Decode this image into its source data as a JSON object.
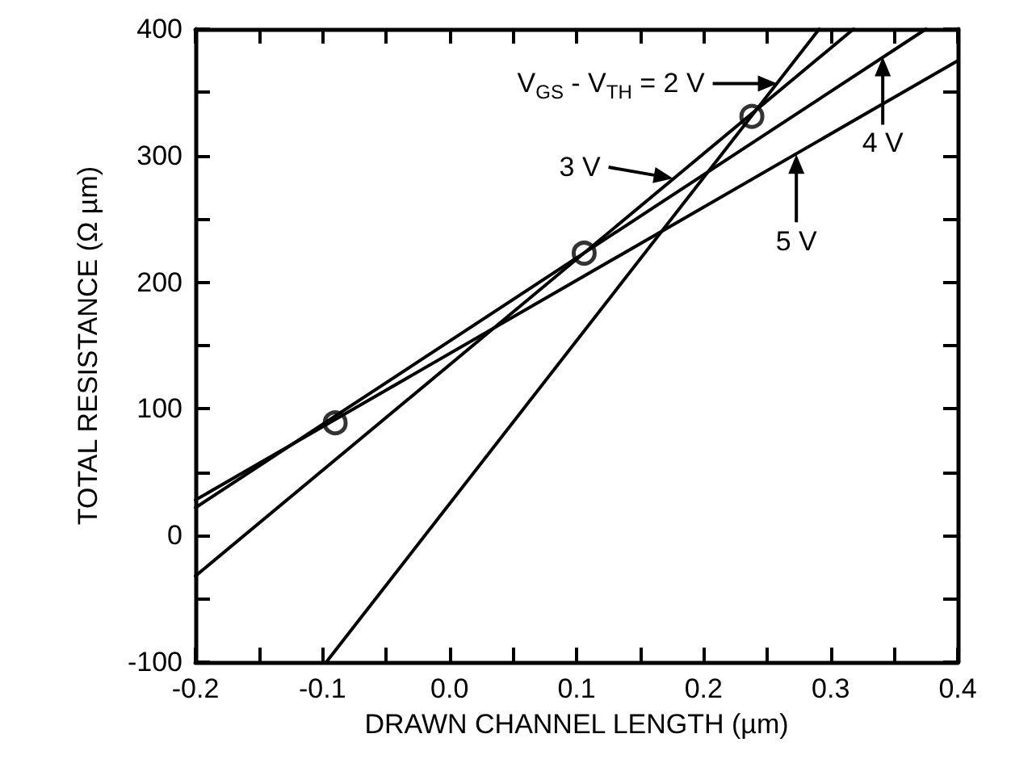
{
  "chart_data": {
    "type": "line",
    "xlabel": "DRAWN CHANNEL LENGTH (µm)",
    "ylabel": "TOTAL RESISTANCE (Ω µm)",
    "series": [
      {
        "color": "#000000",
        "x": [
          -0.097,
          0.291
        ],
        "values": [
          -100,
          400
        ]
      },
      {
        "color": "#000000",
        "x": [
          -0.2,
          0.318
        ],
        "values": [
          -32,
          400
        ]
      },
      {
        "color": "#000000",
        "x": [
          -0.2,
          0.375
        ],
        "values": [
          22,
          400
        ]
      },
      {
        "color": "#000000",
        "x": [
          -0.2,
          0.4
        ],
        "values": [
          28,
          375
        ]
      },
      {
        "type": "scatter",
        "marker": "circle",
        "color": "#000000",
        "x": [
          -0.09,
          0.106,
          0.238
        ],
        "values": [
          89,
          223,
          331
        ]
      }
    ],
    "marker": "none",
    "line_style": "solid",
    "grid": false,
    "xlim": [
      -0.2,
      0.4
    ],
    "ylim": [
      -100,
      400
    ],
    "xticks": [
      -0.2,
      {
        "value": -0.15,
        "label": null
      },
      -0.1,
      {
        "value": -0.05,
        "label": null
      },
      {
        "value": 0,
        "label": "0.0"
      },
      {
        "value": 0.05,
        "label": null
      },
      0.1,
      {
        "value": 0.15,
        "label": null
      },
      0.2,
      {
        "value": 0.25,
        "label": null
      },
      0.3,
      {
        "value": 0.35,
        "label": null
      },
      0.4
    ],
    "yticks": [
      -100,
      {
        "value": -50,
        "label": null
      },
      0,
      {
        "value": 50,
        "label": null
      },
      100,
      {
        "value": 150,
        "label": null
      },
      200,
      {
        "value": 250,
        "label": null
      },
      300,
      {
        "value": 350,
        "label": null
      },
      400
    ],
    "annotations": [
      {
        "text": "V$_{GS}$ - V$_{TH}$ = 2 V",
        "x": 0.258,
        "y": 357
      },
      {
        "text": "3 V",
        "x": 0.176,
        "y": 282
      },
      {
        "text": "4 V",
        "x": 0.341,
        "y": 378
      },
      {
        "text": "5 V",
        "x": 0.273,
        "y": 301
      }
    ]
  }
}
